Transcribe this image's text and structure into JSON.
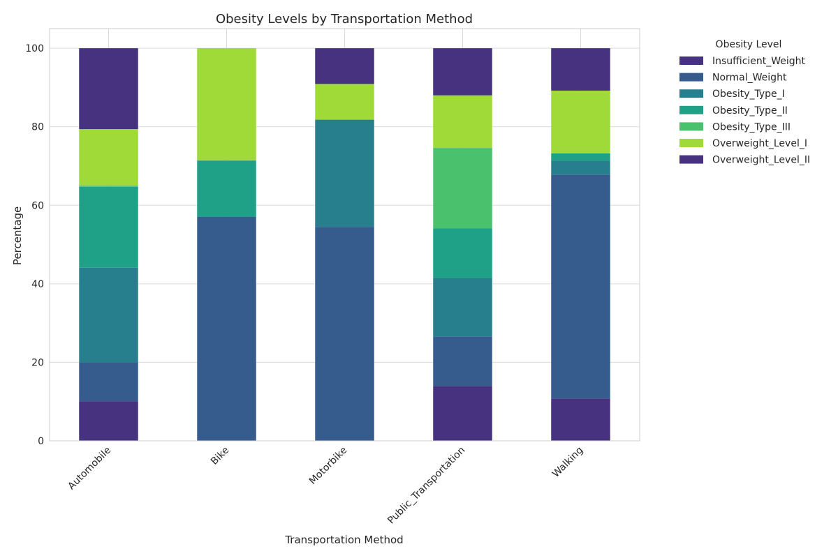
{
  "chart_data": {
    "type": "bar",
    "stacked": true,
    "title": "Obesity Levels by Transportation Method",
    "xlabel": "Transportation Method",
    "ylabel": "Percentage",
    "ylim": [
      0,
      105
    ],
    "yticks": [
      0,
      20,
      40,
      60,
      80,
      100
    ],
    "grid": true,
    "categories": [
      "Automobile",
      "Bike",
      "Motorbike",
      "Public_Transportation",
      "Walking"
    ],
    "legend": {
      "title": "Obesity Level",
      "placement": "outside-right"
    },
    "series": [
      {
        "name": "Insufficient_Weight",
        "color": "#46327e",
        "values": [
          10.1,
          0.0,
          0.0,
          14.0,
          10.8
        ]
      },
      {
        "name": "Normal_Weight",
        "color": "#365c8d",
        "values": [
          9.8,
          57.1,
          54.5,
          12.6,
          57.0
        ]
      },
      {
        "name": "Obesity_Type_I",
        "color": "#277f8e",
        "values": [
          24.2,
          0.0,
          27.3,
          14.9,
          3.6
        ]
      },
      {
        "name": "Obesity_Type_II",
        "color": "#1fa187",
        "values": [
          20.6,
          14.3,
          0.0,
          12.6,
          1.8
        ]
      },
      {
        "name": "Obesity_Type_III",
        "color": "#4ac16d",
        "values": [
          0.3,
          0.0,
          0.0,
          20.5,
          0.0
        ]
      },
      {
        "name": "Overweight_Level_I",
        "color": "#a0da39",
        "values": [
          14.4,
          28.6,
          9.1,
          13.4,
          16.0
        ]
      },
      {
        "name": "Overweight_Level_II",
        "color": "#46327e",
        "values": [
          20.6,
          0.0,
          9.1,
          12.0,
          10.8
        ]
      }
    ]
  }
}
